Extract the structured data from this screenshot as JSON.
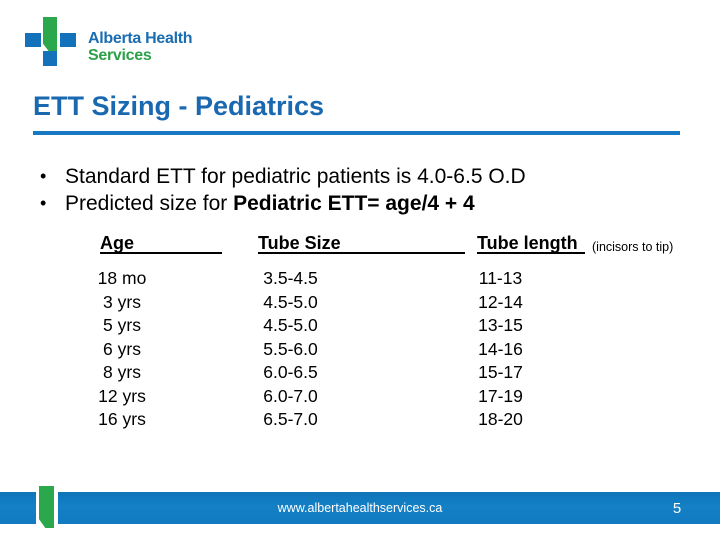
{
  "logo": {
    "line1": "Alberta Health",
    "line2": "Services"
  },
  "slide_title": "ETT Sizing - Pediatrics",
  "bullets": {
    "marker": "•",
    "b1_text": "Standard ETT for pediatric patients is 4.0-6.5 O.D",
    "b1_bold": "",
    "b2_text": "Predicted size for ",
    "b2_bold": "Pediatric ETT= age/4 + 4"
  },
  "table": {
    "headers": {
      "age": "Age",
      "size": "Tube Size",
      "length": "Tube length",
      "length_note": "(incisors to tip)"
    },
    "rows": [
      {
        "age": "18 mo",
        "size": "3.5-4.5",
        "length": "11-13"
      },
      {
        "age": "3 yrs",
        "size": "4.5-5.0",
        "length": "12-14"
      },
      {
        "age": "5 yrs",
        "size": "4.5-5.0",
        "length": "13-15"
      },
      {
        "age": "6 yrs",
        "size": "5.5-6.0",
        "length": "14-16"
      },
      {
        "age": "8 yrs",
        "size": "6.0-6.5",
        "length": "15-17"
      },
      {
        "age": "12 yrs",
        "size": "6.0-7.0",
        "length": "17-19"
      },
      {
        "age": "16 yrs",
        "size": "6.5-7.0",
        "length": "18-20"
      }
    ]
  },
  "footer": {
    "url": "www.albertahealthservices.ca",
    "page_number": "5"
  },
  "colors": {
    "title_blue": "#1A68B0",
    "rule_blue": "#1778C4",
    "footer_bar_blue": "#1480C6",
    "logo_blue": "#1372B9",
    "logo_green": "#2BA84C",
    "logo_text_blue": "#1B6DB2",
    "logo_text_green": "#2AA148"
  }
}
